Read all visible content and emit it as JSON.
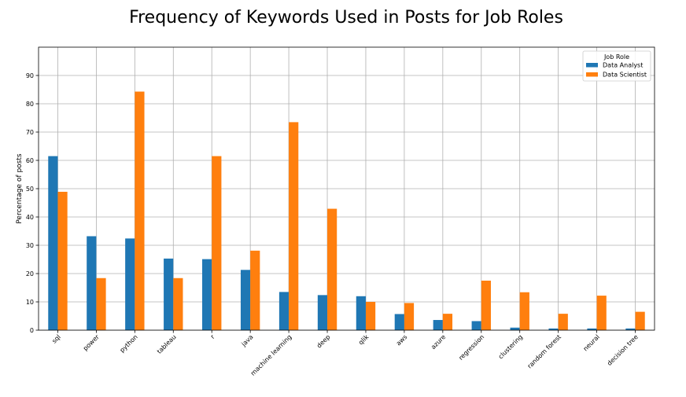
{
  "chart_data": {
    "type": "bar",
    "title": "Frequency of Keywords Used in Posts for Job Roles",
    "xlabel": "",
    "ylabel": "Percentage of posts",
    "ylim": [
      0,
      100
    ],
    "yticks": [
      0,
      10,
      20,
      30,
      40,
      50,
      60,
      70,
      80,
      90
    ],
    "grid": true,
    "legend": {
      "title": "Job Role",
      "placement": "top-right"
    },
    "categories": [
      "sql",
      "power",
      "python",
      "tableau",
      "r",
      "java",
      "machine learning",
      "deep",
      "qlik",
      "aws",
      "azure",
      "regression",
      "clustering",
      "random forest",
      "neural",
      "decision tree"
    ],
    "series": [
      {
        "name": "Data Analyst",
        "color": "#1f77b4",
        "values": [
          61.5,
          33.2,
          32.4,
          25.3,
          25.1,
          21.3,
          13.5,
          12.4,
          12.0,
          5.7,
          3.6,
          3.2,
          0.9,
          0.6,
          0.6,
          0.6
        ]
      },
      {
        "name": "Data Scientist",
        "color": "#ff7f0e",
        "values": [
          48.9,
          18.4,
          84.3,
          18.4,
          61.5,
          28.1,
          73.5,
          42.9,
          10.0,
          9.6,
          5.8,
          17.5,
          13.4,
          5.8,
          12.2,
          6.5
        ]
      }
    ]
  }
}
